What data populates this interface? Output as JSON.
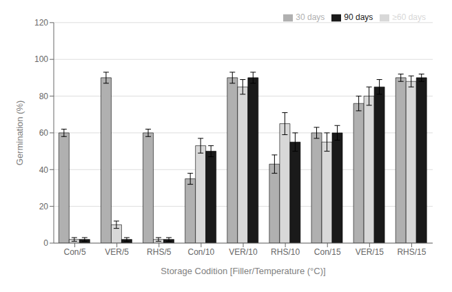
{
  "chart_data": {
    "type": "bar",
    "xlabel": "Storage Codition [Filler/Temperature (°C)]",
    "ylabel": "Germination (%)",
    "categories": [
      "Con/5",
      "VER/5",
      "RHS/5",
      "Con/10",
      "VER/10",
      "RHS/10",
      "Con/15",
      "VER/15",
      "RHS/15"
    ],
    "series": [
      {
        "name": "30 days",
        "color": "#b0b0b0",
        "values": [
          60,
          90,
          60,
          35,
          90,
          43,
          60,
          76,
          90
        ],
        "errors": [
          2,
          3,
          2,
          3,
          3,
          5,
          3,
          4,
          2
        ]
      },
      {
        "name": "≥60 days",
        "color": "#d8d8d8",
        "values": [
          2,
          10,
          2,
          53,
          85,
          65,
          55,
          80,
          88
        ],
        "errors": [
          1,
          2,
          1,
          4,
          4,
          6,
          5,
          5,
          3
        ]
      },
      {
        "name": "90 days",
        "color": "#1a1a1a",
        "values": [
          2,
          2,
          2,
          50,
          90,
          55,
          60,
          85,
          90
        ],
        "errors": [
          1,
          1,
          1,
          3,
          3,
          5,
          4,
          4,
          2
        ]
      }
    ],
    "ylim": [
      0,
      120
    ],
    "yticks": [
      0,
      20,
      40,
      60,
      80,
      100,
      120
    ],
    "grid": true,
    "legend": "upper right"
  }
}
